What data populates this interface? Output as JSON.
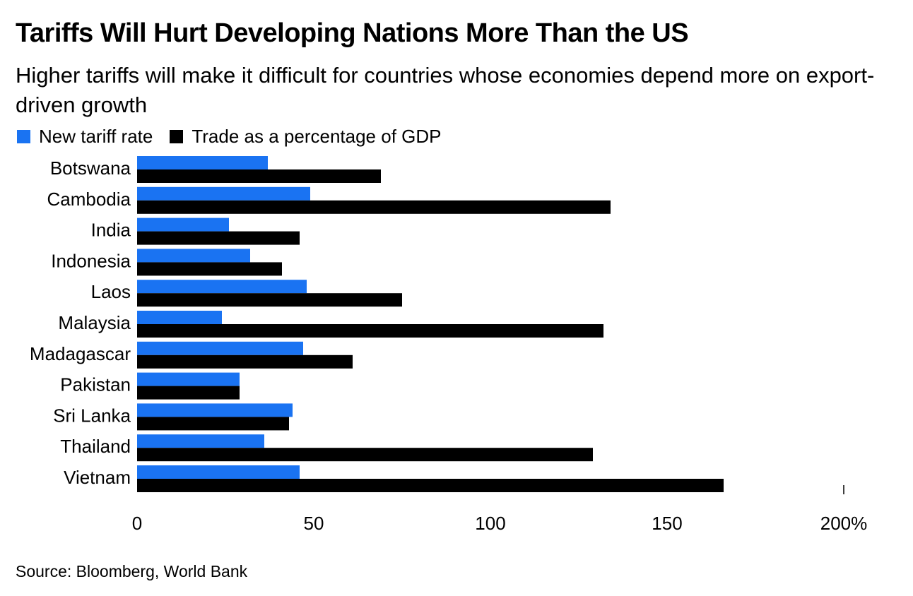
{
  "title": "Tariffs Will Hurt Developing Nations More Than the US",
  "subtitle": "Higher tariffs will make it difficult for countries whose economies depend more on export-driven growth",
  "source": "Source: Bloomberg, World Bank",
  "colors": {
    "tariff": "#1a73f2",
    "trade": "#000000"
  },
  "chart_data": {
    "type": "bar",
    "orientation": "horizontal",
    "categories": [
      "Botswana",
      "Cambodia",
      "India",
      "Indonesia",
      "Laos",
      "Malaysia",
      "Madagascar",
      "Pakistan",
      "Sri Lanka",
      "Thailand",
      "Vietnam"
    ],
    "series": [
      {
        "name": "New tariff rate",
        "color": "#1a73f2",
        "values": [
          37,
          49,
          26,
          32,
          48,
          24,
          47,
          29,
          44,
          36,
          46
        ]
      },
      {
        "name": "Trade as a percentage of GDP",
        "color": "#000000",
        "values": [
          69,
          134,
          46,
          41,
          75,
          132,
          61,
          29,
          43,
          129,
          166
        ]
      }
    ],
    "xlim": [
      0,
      200
    ],
    "xticks": [
      0,
      50,
      100,
      150,
      200
    ],
    "xtick_labels": [
      "0",
      "50",
      "100",
      "150",
      "200%"
    ],
    "legend_position": "top-left",
    "grid": false
  }
}
